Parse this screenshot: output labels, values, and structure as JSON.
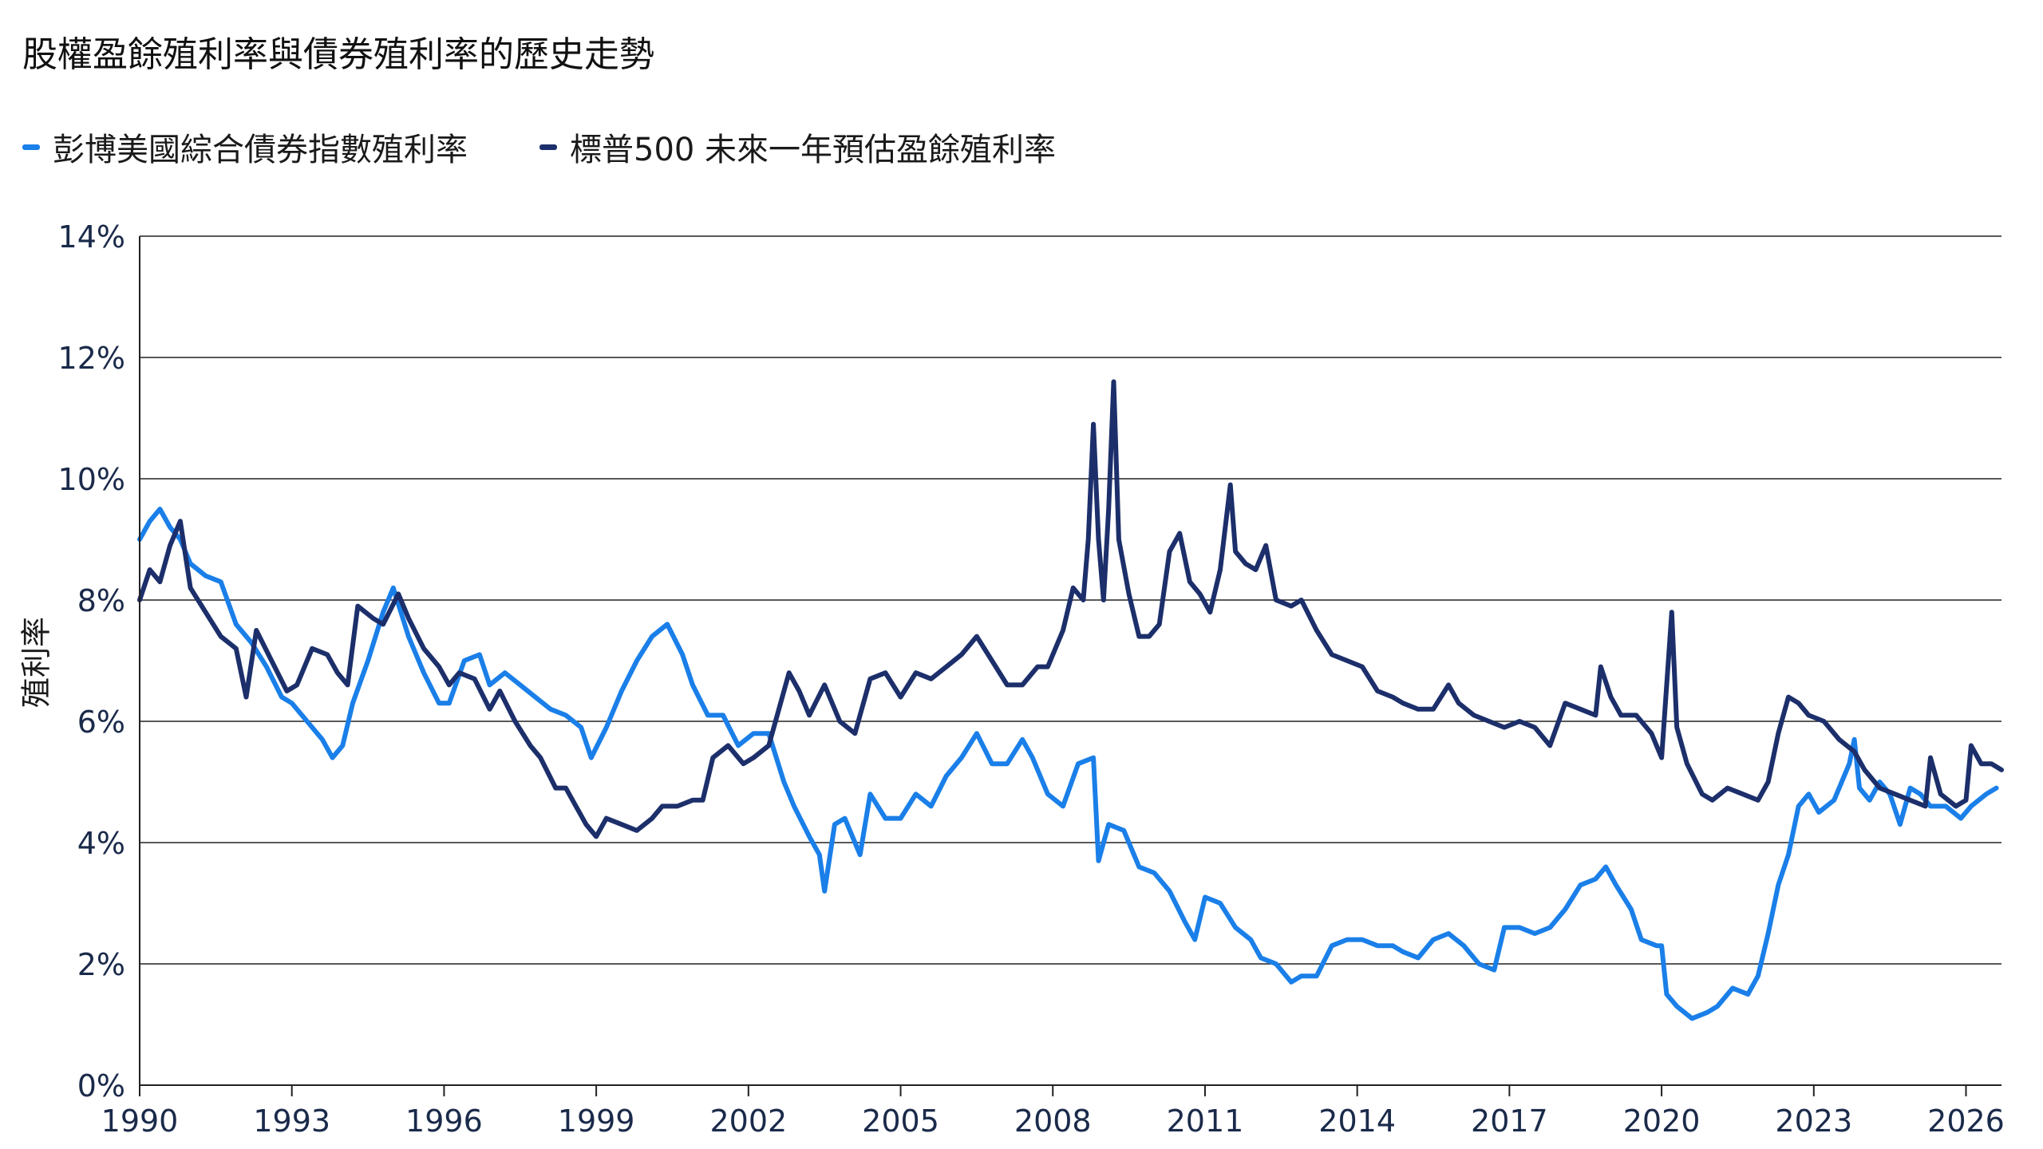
{
  "title": "股權盈餘殖利率與債券殖利率的歷史走勢",
  "legend": [
    {
      "label": "彭博美國綜合債券指數殖利率",
      "color": "#1a7fe8"
    },
    {
      "label": "標普500 未來一年預估盈餘殖利率",
      "color": "#1c2f6b"
    }
  ],
  "chart_data": {
    "type": "line",
    "title": "股權盈餘殖利率與債券殖利率的歷史走勢",
    "xlabel": "",
    "ylabel": "殖利率",
    "xlim": [
      1990,
      2026.7
    ],
    "ylim": [
      0,
      14
    ],
    "x_ticks": [
      1990,
      1993,
      1996,
      1999,
      2002,
      2005,
      2008,
      2011,
      2014,
      2017,
      2020,
      2023,
      2026
    ],
    "x_tick_labels": [
      "1990",
      "1993",
      "1996",
      "1999",
      "2002",
      "2005",
      "2008",
      "2011",
      "2014",
      "2017",
      "2020",
      "2023",
      "2026"
    ],
    "y_ticks": [
      0,
      2,
      4,
      6,
      8,
      10,
      12,
      14
    ],
    "y_tick_labels": [
      "0%",
      "2%",
      "4%",
      "6%",
      "8%",
      "10%",
      "12%",
      "14%"
    ],
    "grid": "horizontal",
    "legend_position": "top-left",
    "series": [
      {
        "name": "彭博美國綜合債券指數殖利率",
        "color": "#1a7fe8",
        "points": [
          [
            1990.0,
            9.0
          ],
          [
            1990.2,
            9.3
          ],
          [
            1990.4,
            9.5
          ],
          [
            1990.6,
            9.2
          ],
          [
            1990.8,
            9.0
          ],
          [
            1991.0,
            8.6
          ],
          [
            1991.3,
            8.4
          ],
          [
            1991.6,
            8.3
          ],
          [
            1991.9,
            7.6
          ],
          [
            1992.2,
            7.3
          ],
          [
            1992.5,
            6.9
          ],
          [
            1992.8,
            6.4
          ],
          [
            1993.0,
            6.3
          ],
          [
            1993.3,
            6.0
          ],
          [
            1993.6,
            5.7
          ],
          [
            1993.8,
            5.4
          ],
          [
            1994.0,
            5.6
          ],
          [
            1994.2,
            6.3
          ],
          [
            1994.5,
            7.0
          ],
          [
            1994.8,
            7.8
          ],
          [
            1995.0,
            8.2
          ],
          [
            1995.3,
            7.4
          ],
          [
            1995.6,
            6.8
          ],
          [
            1995.9,
            6.3
          ],
          [
            1996.1,
            6.3
          ],
          [
            1996.4,
            7.0
          ],
          [
            1996.7,
            7.1
          ],
          [
            1996.9,
            6.6
          ],
          [
            1997.2,
            6.8
          ],
          [
            1997.5,
            6.6
          ],
          [
            1997.8,
            6.4
          ],
          [
            1998.1,
            6.2
          ],
          [
            1998.4,
            6.1
          ],
          [
            1998.7,
            5.9
          ],
          [
            1998.9,
            5.4
          ],
          [
            1999.2,
            5.9
          ],
          [
            1999.5,
            6.5
          ],
          [
            1999.8,
            7.0
          ],
          [
            2000.1,
            7.4
          ],
          [
            2000.4,
            7.6
          ],
          [
            2000.7,
            7.1
          ],
          [
            2000.9,
            6.6
          ],
          [
            2001.2,
            6.1
          ],
          [
            2001.5,
            6.1
          ],
          [
            2001.8,
            5.6
          ],
          [
            2002.1,
            5.8
          ],
          [
            2002.4,
            5.8
          ],
          [
            2002.7,
            5.0
          ],
          [
            2002.9,
            4.6
          ],
          [
            2003.2,
            4.1
          ],
          [
            2003.4,
            3.8
          ],
          [
            2003.5,
            3.2
          ],
          [
            2003.7,
            4.3
          ],
          [
            2003.9,
            4.4
          ],
          [
            2004.2,
            3.8
          ],
          [
            2004.4,
            4.8
          ],
          [
            2004.7,
            4.4
          ],
          [
            2005.0,
            4.4
          ],
          [
            2005.3,
            4.8
          ],
          [
            2005.6,
            4.6
          ],
          [
            2005.9,
            5.1
          ],
          [
            2006.2,
            5.4
          ],
          [
            2006.5,
            5.8
          ],
          [
            2006.8,
            5.3
          ],
          [
            2007.1,
            5.3
          ],
          [
            2007.4,
            5.7
          ],
          [
            2007.6,
            5.4
          ],
          [
            2007.9,
            4.8
          ],
          [
            2008.2,
            4.6
          ],
          [
            2008.5,
            5.3
          ],
          [
            2008.8,
            5.4
          ],
          [
            2008.9,
            3.7
          ],
          [
            2009.1,
            4.3
          ],
          [
            2009.4,
            4.2
          ],
          [
            2009.7,
            3.6
          ],
          [
            2010.0,
            3.5
          ],
          [
            2010.3,
            3.2
          ],
          [
            2010.6,
            2.7
          ],
          [
            2010.8,
            2.4
          ],
          [
            2011.0,
            3.1
          ],
          [
            2011.3,
            3.0
          ],
          [
            2011.6,
            2.6
          ],
          [
            2011.9,
            2.4
          ],
          [
            2012.1,
            2.1
          ],
          [
            2012.4,
            2.0
          ],
          [
            2012.7,
            1.7
          ],
          [
            2012.9,
            1.8
          ],
          [
            2013.2,
            1.8
          ],
          [
            2013.5,
            2.3
          ],
          [
            2013.8,
            2.4
          ],
          [
            2014.1,
            2.4
          ],
          [
            2014.4,
            2.3
          ],
          [
            2014.7,
            2.3
          ],
          [
            2014.9,
            2.2
          ],
          [
            2015.2,
            2.1
          ],
          [
            2015.5,
            2.4
          ],
          [
            2015.8,
            2.5
          ],
          [
            2016.1,
            2.3
          ],
          [
            2016.4,
            2.0
          ],
          [
            2016.7,
            1.9
          ],
          [
            2016.9,
            2.6
          ],
          [
            2017.2,
            2.6
          ],
          [
            2017.5,
            2.5
          ],
          [
            2017.8,
            2.6
          ],
          [
            2018.1,
            2.9
          ],
          [
            2018.4,
            3.3
          ],
          [
            2018.7,
            3.4
          ],
          [
            2018.9,
            3.6
          ],
          [
            2019.1,
            3.3
          ],
          [
            2019.4,
            2.9
          ],
          [
            2019.6,
            2.4
          ],
          [
            2019.9,
            2.3
          ],
          [
            2020.0,
            2.3
          ],
          [
            2020.1,
            1.5
          ],
          [
            2020.3,
            1.3
          ],
          [
            2020.6,
            1.1
          ],
          [
            2020.9,
            1.2
          ],
          [
            2021.1,
            1.3
          ],
          [
            2021.4,
            1.6
          ],
          [
            2021.7,
            1.5
          ],
          [
            2021.9,
            1.8
          ],
          [
            2022.1,
            2.5
          ],
          [
            2022.3,
            3.3
          ],
          [
            2022.5,
            3.8
          ],
          [
            2022.7,
            4.6
          ],
          [
            2022.9,
            4.8
          ],
          [
            2023.1,
            4.5
          ],
          [
            2023.4,
            4.7
          ],
          [
            2023.7,
            5.3
          ],
          [
            2023.8,
            5.7
          ],
          [
            2023.9,
            4.9
          ],
          [
            2024.1,
            4.7
          ],
          [
            2024.3,
            5.0
          ],
          [
            2024.5,
            4.8
          ],
          [
            2024.7,
            4.3
          ],
          [
            2024.9,
            4.9
          ],
          [
            2025.1,
            4.8
          ],
          [
            2025.3,
            4.6
          ],
          [
            2025.6,
            4.6
          ],
          [
            2025.9,
            4.4
          ],
          [
            2026.1,
            4.6
          ],
          [
            2026.4,
            4.8
          ],
          [
            2026.6,
            4.9
          ]
        ]
      },
      {
        "name": "標普500 未來一年預估盈餘殖利率",
        "color": "#1c2f6b",
        "points": [
          [
            1990.0,
            8.0
          ],
          [
            1990.2,
            8.5
          ],
          [
            1990.4,
            8.3
          ],
          [
            1990.6,
            8.9
          ],
          [
            1990.8,
            9.3
          ],
          [
            1991.0,
            8.2
          ],
          [
            1991.3,
            7.8
          ],
          [
            1991.6,
            7.4
          ],
          [
            1991.9,
            7.2
          ],
          [
            1992.1,
            6.4
          ],
          [
            1992.3,
            7.5
          ],
          [
            1992.6,
            7.0
          ],
          [
            1992.9,
            6.5
          ],
          [
            1993.1,
            6.6
          ],
          [
            1993.4,
            7.2
          ],
          [
            1993.7,
            7.1
          ],
          [
            1993.9,
            6.8
          ],
          [
            1994.1,
            6.6
          ],
          [
            1994.3,
            7.9
          ],
          [
            1994.6,
            7.7
          ],
          [
            1994.8,
            7.6
          ],
          [
            1995.1,
            8.1
          ],
          [
            1995.3,
            7.7
          ],
          [
            1995.6,
            7.2
          ],
          [
            1995.9,
            6.9
          ],
          [
            1996.1,
            6.6
          ],
          [
            1996.3,
            6.8
          ],
          [
            1996.6,
            6.7
          ],
          [
            1996.9,
            6.2
          ],
          [
            1997.1,
            6.5
          ],
          [
            1997.4,
            6.0
          ],
          [
            1997.7,
            5.6
          ],
          [
            1997.9,
            5.4
          ],
          [
            1998.2,
            4.9
          ],
          [
            1998.4,
            4.9
          ],
          [
            1998.6,
            4.6
          ],
          [
            1998.8,
            4.3
          ],
          [
            1999.0,
            4.1
          ],
          [
            1999.2,
            4.4
          ],
          [
            1999.5,
            4.3
          ],
          [
            1999.8,
            4.2
          ],
          [
            2000.1,
            4.4
          ],
          [
            2000.3,
            4.6
          ],
          [
            2000.6,
            4.6
          ],
          [
            2000.9,
            4.7
          ],
          [
            2001.1,
            4.7
          ],
          [
            2001.3,
            5.4
          ],
          [
            2001.6,
            5.6
          ],
          [
            2001.9,
            5.3
          ],
          [
            2002.1,
            5.4
          ],
          [
            2002.4,
            5.6
          ],
          [
            2002.6,
            6.2
          ],
          [
            2002.8,
            6.8
          ],
          [
            2003.0,
            6.5
          ],
          [
            2003.2,
            6.1
          ],
          [
            2003.5,
            6.6
          ],
          [
            2003.8,
            6.0
          ],
          [
            2004.1,
            5.8
          ],
          [
            2004.4,
            6.7
          ],
          [
            2004.7,
            6.8
          ],
          [
            2005.0,
            6.4
          ],
          [
            2005.3,
            6.8
          ],
          [
            2005.6,
            6.7
          ],
          [
            2005.9,
            6.9
          ],
          [
            2006.2,
            7.1
          ],
          [
            2006.5,
            7.4
          ],
          [
            2006.8,
            7.0
          ],
          [
            2007.1,
            6.6
          ],
          [
            2007.4,
            6.6
          ],
          [
            2007.7,
            6.9
          ],
          [
            2007.9,
            6.9
          ],
          [
            2008.2,
            7.5
          ],
          [
            2008.4,
            8.2
          ],
          [
            2008.6,
            8.0
          ],
          [
            2008.7,
            9.0
          ],
          [
            2008.8,
            10.9
          ],
          [
            2008.9,
            9.0
          ],
          [
            2009.0,
            8.0
          ],
          [
            2009.1,
            9.5
          ],
          [
            2009.2,
            11.6
          ],
          [
            2009.3,
            9.0
          ],
          [
            2009.5,
            8.1
          ],
          [
            2009.7,
            7.4
          ],
          [
            2009.9,
            7.4
          ],
          [
            2010.1,
            7.6
          ],
          [
            2010.3,
            8.8
          ],
          [
            2010.5,
            9.1
          ],
          [
            2010.7,
            8.3
          ],
          [
            2010.9,
            8.1
          ],
          [
            2011.1,
            7.8
          ],
          [
            2011.3,
            8.5
          ],
          [
            2011.5,
            9.9
          ],
          [
            2011.6,
            8.8
          ],
          [
            2011.8,
            8.6
          ],
          [
            2012.0,
            8.5
          ],
          [
            2012.2,
            8.9
          ],
          [
            2012.4,
            8.0
          ],
          [
            2012.7,
            7.9
          ],
          [
            2012.9,
            8.0
          ],
          [
            2013.2,
            7.5
          ],
          [
            2013.5,
            7.1
          ],
          [
            2013.8,
            7.0
          ],
          [
            2014.1,
            6.9
          ],
          [
            2014.4,
            6.5
          ],
          [
            2014.7,
            6.4
          ],
          [
            2014.9,
            6.3
          ],
          [
            2015.2,
            6.2
          ],
          [
            2015.5,
            6.2
          ],
          [
            2015.8,
            6.6
          ],
          [
            2016.0,
            6.3
          ],
          [
            2016.3,
            6.1
          ],
          [
            2016.6,
            6.0
          ],
          [
            2016.9,
            5.9
          ],
          [
            2017.2,
            6.0
          ],
          [
            2017.5,
            5.9
          ],
          [
            2017.8,
            5.6
          ],
          [
            2018.1,
            6.3
          ],
          [
            2018.4,
            6.2
          ],
          [
            2018.7,
            6.1
          ],
          [
            2018.8,
            6.9
          ],
          [
            2019.0,
            6.4
          ],
          [
            2019.2,
            6.1
          ],
          [
            2019.5,
            6.1
          ],
          [
            2019.8,
            5.8
          ],
          [
            2020.0,
            5.4
          ],
          [
            2020.2,
            7.8
          ],
          [
            2020.3,
            5.9
          ],
          [
            2020.5,
            5.3
          ],
          [
            2020.8,
            4.8
          ],
          [
            2021.0,
            4.7
          ],
          [
            2021.3,
            4.9
          ],
          [
            2021.6,
            4.8
          ],
          [
            2021.9,
            4.7
          ],
          [
            2022.1,
            5.0
          ],
          [
            2022.3,
            5.8
          ],
          [
            2022.5,
            6.4
          ],
          [
            2022.7,
            6.3
          ],
          [
            2022.9,
            6.1
          ],
          [
            2023.2,
            6.0
          ],
          [
            2023.5,
            5.7
          ],
          [
            2023.8,
            5.5
          ],
          [
            2024.0,
            5.2
          ],
          [
            2024.3,
            4.9
          ],
          [
            2024.6,
            4.8
          ],
          [
            2024.9,
            4.7
          ],
          [
            2025.2,
            4.6
          ],
          [
            2025.3,
            5.4
          ],
          [
            2025.5,
            4.8
          ],
          [
            2025.8,
            4.6
          ],
          [
            2026.0,
            4.7
          ],
          [
            2026.1,
            5.6
          ],
          [
            2026.3,
            5.3
          ],
          [
            2026.5,
            5.3
          ],
          [
            2026.7,
            5.2
          ]
        ]
      }
    ]
  }
}
